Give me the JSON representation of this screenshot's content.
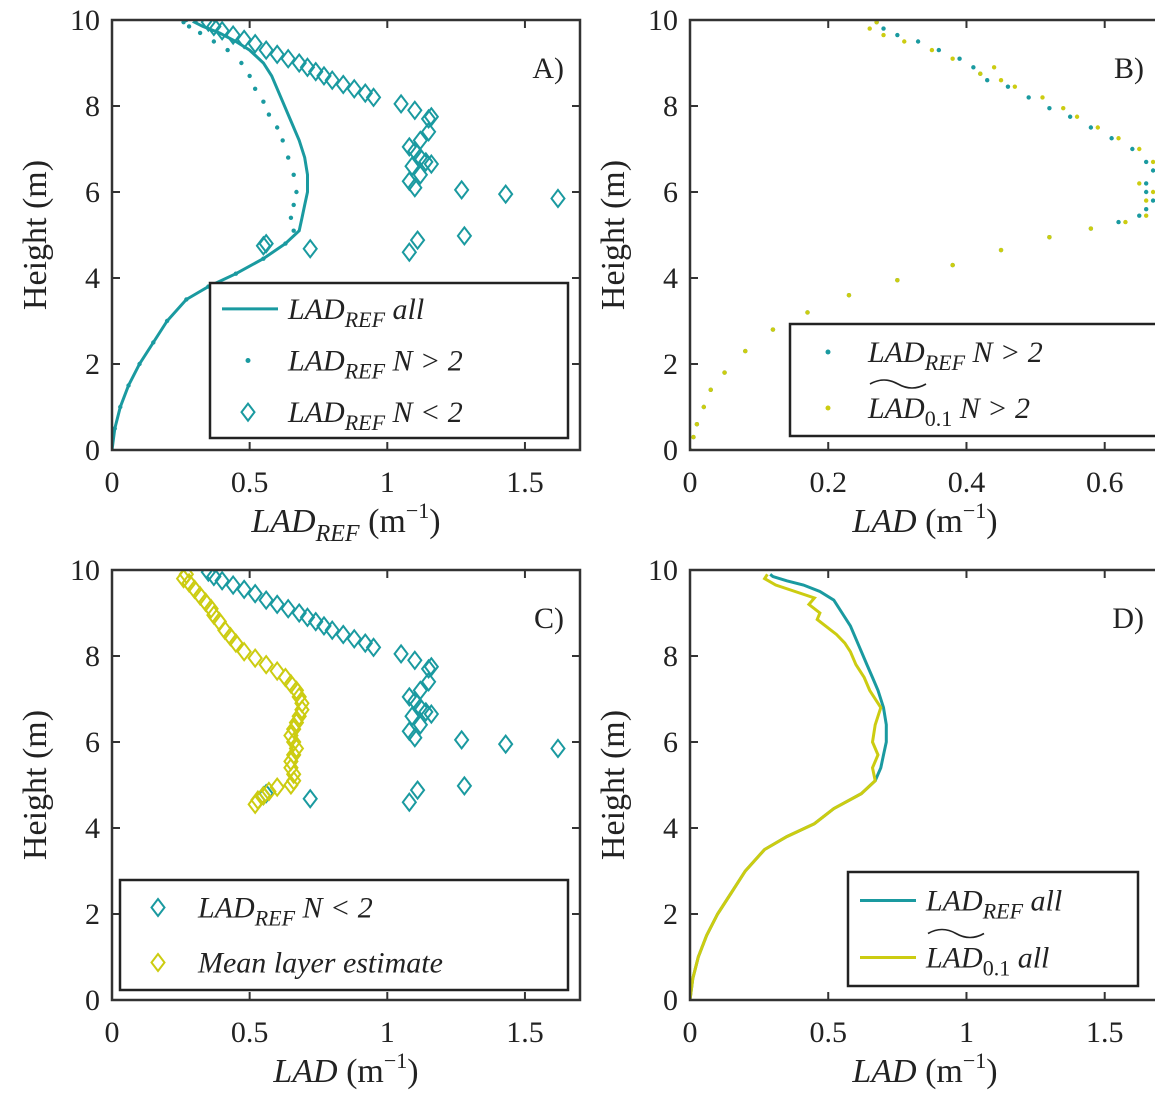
{
  "colors": {
    "teal": "#1a9aa0",
    "yellow": "#cccc11"
  },
  "chart_data": [
    {
      "type": "line",
      "panel_label": "A)",
      "xlabel": "LAD_REF (m^-1)",
      "ylabel": "Height (m)",
      "xlim": [
        0,
        1.7
      ],
      "ylim": [
        0,
        10
      ],
      "xticks": [
        "0",
        "0.5",
        "1",
        "1.5"
      ],
      "yticks": [
        "0",
        "2",
        "4",
        "6",
        "8",
        "10"
      ],
      "legend": {
        "position": "bottom-right",
        "entries": [
          "LAD_REF all",
          "LAD_REF N > 2",
          "LAD_REF N < 2"
        ]
      },
      "series": [
        {
          "name": "LAD_REF all",
          "style": "line",
          "color": "#1a9aa0",
          "x": [
            0,
            0.01,
            0.03,
            0.06,
            0.1,
            0.15,
            0.2,
            0.27,
            0.35,
            0.45,
            0.55,
            0.63,
            0.68,
            0.69,
            0.7,
            0.71,
            0.71,
            0.7,
            0.68,
            0.66,
            0.64,
            0.62,
            0.6,
            0.58,
            0.55,
            0.5,
            0.45,
            0.39,
            0.33,
            0.3,
            0.31
          ],
          "y": [
            0,
            0.5,
            1.0,
            1.5,
            2.0,
            2.5,
            3.0,
            3.5,
            3.8,
            4.1,
            4.45,
            4.8,
            5.1,
            5.4,
            5.7,
            6.0,
            6.4,
            6.8,
            7.2,
            7.5,
            7.8,
            8.1,
            8.4,
            8.7,
            9.0,
            9.3,
            9.5,
            9.7,
            9.85,
            9.95,
            10.0
          ]
        },
        {
          "name": "LAD_REF N > 2",
          "style": "dots",
          "color": "#1a9aa0",
          "x": [
            0,
            0.01,
            0.03,
            0.06,
            0.1,
            0.15,
            0.2,
            0.27,
            0.35,
            0.45,
            0.55,
            0.63,
            0.66,
            0.65,
            0.66,
            0.67,
            0.66,
            0.64,
            0.62,
            0.6,
            0.57,
            0.55,
            0.52,
            0.5,
            0.47,
            0.42,
            0.37,
            0.32,
            0.28,
            0.26,
            0.27
          ],
          "y": [
            0,
            0.5,
            1.0,
            1.5,
            2.0,
            2.5,
            3.0,
            3.5,
            3.8,
            4.1,
            4.45,
            4.8,
            5.1,
            5.4,
            5.7,
            6.0,
            6.4,
            6.8,
            7.2,
            7.5,
            7.8,
            8.1,
            8.4,
            8.7,
            9.0,
            9.3,
            9.5,
            9.7,
            9.85,
            9.95,
            10.0
          ]
        },
        {
          "name": "LAD_REF N < 2",
          "style": "diamonds",
          "color": "#1a9aa0",
          "x": [
            0.35,
            0.37,
            0.4,
            0.44,
            0.48,
            0.52,
            0.56,
            0.6,
            0.64,
            0.68,
            0.71,
            0.74,
            0.77,
            0.8,
            0.84,
            0.88,
            0.92,
            0.95,
            1.05,
            1.1,
            1.15,
            1.16,
            1.15,
            1.12,
            1.08,
            1.1,
            1.12,
            1.09,
            1.14,
            1.16,
            1.08,
            1.12,
            1.1,
            1.27,
            1.43,
            1.62,
            1.28,
            1.11,
            1.08,
            0.72,
            0.56,
            0.55
          ],
          "y": [
            9.95,
            9.85,
            9.75,
            9.65,
            9.55,
            9.45,
            9.3,
            9.2,
            9.1,
            9.0,
            8.9,
            8.8,
            8.7,
            8.6,
            8.5,
            8.4,
            8.3,
            8.2,
            8.05,
            7.9,
            7.7,
            7.75,
            7.4,
            7.2,
            7.05,
            6.95,
            6.8,
            6.6,
            6.7,
            6.65,
            6.25,
            6.4,
            6.1,
            6.05,
            5.95,
            5.85,
            4.98,
            4.88,
            4.6,
            4.68,
            4.8,
            4.75
          ]
        }
      ]
    },
    {
      "type": "scatter",
      "panel_label": "B)",
      "xlabel": "LAD (m^-1)",
      "ylabel": "Height (m)",
      "xlim": [
        0,
        0.68
      ],
      "ylim": [
        0,
        10
      ],
      "xticks": [
        "0",
        "0.2",
        "0.4",
        "0.6"
      ],
      "yticks": [
        "0",
        "2",
        "4",
        "6",
        "8",
        "10"
      ],
      "legend": {
        "position": "bottom-right",
        "entries": [
          "LAD_REF N > 2",
          "LAD~0.1 N > 2"
        ]
      },
      "series": [
        {
          "name": "LAD_REF N > 2",
          "style": "dots",
          "color": "#1a9aa0",
          "x": [
            0,
            0.005,
            0.01,
            0.02,
            0.03,
            0.05,
            0.08,
            0.12,
            0.17,
            0.23,
            0.3,
            0.38,
            0.45,
            0.52,
            0.58,
            0.62,
            0.65,
            0.66,
            0.67,
            0.66,
            0.66,
            0.67,
            0.66,
            0.64,
            0.61,
            0.58,
            0.55,
            0.52,
            0.49,
            0.46,
            0.43,
            0.42,
            0.41,
            0.39,
            0.36,
            0.33,
            0.3,
            0.28,
            0.27
          ],
          "y": [
            0,
            0.3,
            0.6,
            1.0,
            1.4,
            1.8,
            2.3,
            2.8,
            3.2,
            3.6,
            3.95,
            4.3,
            4.65,
            4.95,
            5.15,
            5.3,
            5.45,
            5.6,
            5.8,
            6.0,
            6.2,
            6.5,
            6.7,
            7.0,
            7.25,
            7.5,
            7.75,
            7.95,
            8.2,
            8.45,
            8.6,
            8.75,
            8.9,
            9.1,
            9.3,
            9.5,
            9.65,
            9.8,
            9.95
          ]
        },
        {
          "name": "LAD~0.1 N > 2",
          "style": "dots",
          "color": "#cccc11",
          "x": [
            0,
            0.005,
            0.01,
            0.02,
            0.03,
            0.05,
            0.08,
            0.12,
            0.17,
            0.23,
            0.3,
            0.38,
            0.45,
            0.52,
            0.58,
            0.63,
            0.66,
            0.68,
            0.66,
            0.67,
            0.65,
            0.68,
            0.67,
            0.65,
            0.62,
            0.59,
            0.56,
            0.54,
            0.51,
            0.47,
            0.45,
            0.44,
            0.42,
            0.38,
            0.35,
            0.31,
            0.28,
            0.26,
            0.27
          ],
          "y": [
            0,
            0.3,
            0.6,
            1.0,
            1.4,
            1.8,
            2.3,
            2.8,
            3.2,
            3.6,
            3.95,
            4.3,
            4.65,
            4.95,
            5.15,
            5.3,
            5.45,
            5.6,
            5.8,
            6.0,
            6.2,
            6.5,
            6.7,
            7.0,
            7.25,
            7.5,
            7.75,
            7.95,
            8.2,
            8.45,
            8.6,
            8.9,
            8.75,
            9.1,
            9.3,
            9.5,
            9.65,
            9.8,
            9.95
          ]
        }
      ]
    },
    {
      "type": "scatter",
      "panel_label": "C)",
      "xlabel": "LAD (m^-1)",
      "ylabel": "Height (m)",
      "xlim": [
        0,
        1.7
      ],
      "ylim": [
        0,
        10
      ],
      "xticks": [
        "0",
        "0.5",
        "1",
        "1.5"
      ],
      "yticks": [
        "0",
        "2",
        "4",
        "6",
        "8",
        "10"
      ],
      "legend": {
        "position": "bottom-right",
        "entries": [
          "LAD_REF N < 2",
          "Mean layer estimate"
        ]
      },
      "series": [
        {
          "name": "LAD_REF N < 2",
          "style": "diamonds",
          "color": "#1a9aa0",
          "x": [
            0.35,
            0.37,
            0.4,
            0.44,
            0.48,
            0.52,
            0.56,
            0.6,
            0.64,
            0.68,
            0.71,
            0.74,
            0.77,
            0.8,
            0.84,
            0.88,
            0.92,
            0.95,
            1.05,
            1.1,
            1.15,
            1.16,
            1.15,
            1.12,
            1.08,
            1.1,
            1.12,
            1.09,
            1.14,
            1.16,
            1.08,
            1.12,
            1.1,
            1.27,
            1.43,
            1.62,
            1.28,
            1.11,
            1.08,
            0.72,
            0.56,
            0.55
          ],
          "y": [
            9.95,
            9.85,
            9.75,
            9.65,
            9.55,
            9.45,
            9.3,
            9.2,
            9.1,
            9.0,
            8.9,
            8.8,
            8.7,
            8.6,
            8.5,
            8.4,
            8.3,
            8.2,
            8.05,
            7.9,
            7.7,
            7.75,
            7.4,
            7.2,
            7.05,
            6.95,
            6.8,
            6.6,
            6.7,
            6.65,
            6.25,
            6.4,
            6.1,
            6.05,
            5.95,
            5.85,
            4.98,
            4.88,
            4.6,
            4.68,
            4.8,
            4.75
          ]
        },
        {
          "name": "Mean layer estimate",
          "style": "diamonds",
          "color": "#cccc11",
          "x": [
            0.27,
            0.26,
            0.28,
            0.3,
            0.32,
            0.34,
            0.36,
            0.37,
            0.39,
            0.41,
            0.43,
            0.45,
            0.48,
            0.52,
            0.56,
            0.6,
            0.63,
            0.65,
            0.67,
            0.68,
            0.69,
            0.69,
            0.68,
            0.67,
            0.66,
            0.65,
            0.66,
            0.67,
            0.66,
            0.65,
            0.65,
            0.66,
            0.66,
            0.65,
            0.6,
            0.57,
            0.55,
            0.53,
            0.52
          ],
          "y": [
            9.9,
            9.8,
            9.7,
            9.55,
            9.4,
            9.25,
            9.1,
            8.95,
            8.8,
            8.6,
            8.45,
            8.3,
            8.1,
            7.95,
            7.8,
            7.65,
            7.5,
            7.35,
            7.2,
            7.05,
            6.9,
            6.75,
            6.6,
            6.45,
            6.3,
            6.15,
            6.0,
            5.85,
            5.7,
            5.55,
            5.4,
            5.25,
            5.1,
            5.0,
            4.95,
            4.85,
            4.75,
            4.65,
            4.55
          ]
        }
      ]
    },
    {
      "type": "line",
      "panel_label": "D)",
      "xlabel": "LAD (m^-1)",
      "ylabel": "Height (m)",
      "xlim": [
        0,
        1.7
      ],
      "ylim": [
        0,
        10
      ],
      "xticks": [
        "0",
        "0.5",
        "1",
        "1.5"
      ],
      "yticks": [
        "0",
        "2",
        "4",
        "6",
        "8",
        "10"
      ],
      "legend": {
        "position": "bottom-right",
        "entries": [
          "LAD_REF all",
          "LAD~0.1 all"
        ]
      },
      "series": [
        {
          "name": "LAD_REF all",
          "style": "line",
          "color": "#1a9aa0",
          "x": [
            0,
            0.01,
            0.03,
            0.06,
            0.1,
            0.15,
            0.2,
            0.27,
            0.35,
            0.45,
            0.52,
            0.62,
            0.67,
            0.69,
            0.7,
            0.71,
            0.71,
            0.7,
            0.68,
            0.66,
            0.64,
            0.62,
            0.6,
            0.58,
            0.55,
            0.52,
            0.47,
            0.41,
            0.35,
            0.3,
            0.29
          ],
          "y": [
            0,
            0.5,
            1.0,
            1.5,
            2.0,
            2.5,
            3.0,
            3.5,
            3.8,
            4.1,
            4.45,
            4.8,
            5.1,
            5.4,
            5.7,
            6.0,
            6.4,
            6.8,
            7.2,
            7.5,
            7.8,
            8.1,
            8.4,
            8.7,
            9.0,
            9.3,
            9.5,
            9.65,
            9.75,
            9.85,
            9.9
          ]
        },
        {
          "name": "LAD~0.1 all",
          "style": "line",
          "color": "#cccc11",
          "x": [
            0,
            0.01,
            0.03,
            0.06,
            0.1,
            0.15,
            0.2,
            0.27,
            0.35,
            0.45,
            0.52,
            0.62,
            0.67,
            0.66,
            0.68,
            0.66,
            0.67,
            0.69,
            0.65,
            0.63,
            0.6,
            0.58,
            0.56,
            0.53,
            0.49,
            0.46,
            0.47,
            0.43,
            0.45,
            0.38,
            0.31,
            0.27,
            0.28
          ],
          "y": [
            0,
            0.5,
            1.0,
            1.5,
            2.0,
            2.5,
            3.0,
            3.5,
            3.8,
            4.1,
            4.45,
            4.8,
            5.1,
            5.4,
            5.7,
            6.0,
            6.4,
            6.8,
            7.2,
            7.5,
            7.8,
            8.1,
            8.3,
            8.5,
            8.7,
            8.85,
            9.0,
            9.2,
            9.35,
            9.5,
            9.65,
            9.8,
            9.9
          ]
        }
      ]
    }
  ]
}
